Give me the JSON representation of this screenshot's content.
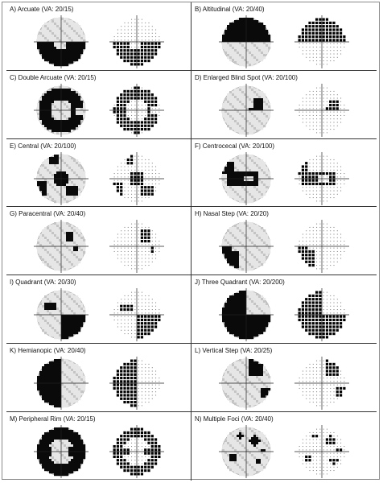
{
  "figure": {
    "panels": [
      {
        "label": "A) Arcuate (VA: 20/15)",
        "pattern": "arcuate"
      },
      {
        "label": "B) Altitudinal (VA: 20/40)",
        "pattern": "altitudinal"
      },
      {
        "label": "C) Double Arcuate (VA: 20/15)",
        "pattern": "double-arcuate"
      },
      {
        "label": "D) Enlarged Blind Spot (VA: 20/100)",
        "pattern": "blind-spot"
      },
      {
        "label": "E) Central (VA: 20/100)",
        "pattern": "central"
      },
      {
        "label": "F) Centrocecal (VA: 20/100)",
        "pattern": "centrocecal"
      },
      {
        "label": "G) Paracentral (VA: 20/40)",
        "pattern": "paracentral"
      },
      {
        "label": "H) Nasal Step (VA: 20/20)",
        "pattern": "nasal-step"
      },
      {
        "label": "I) Quadrant (VA: 20/30)",
        "pattern": "quadrant"
      },
      {
        "label": "J) Three Quadrant (VA: 20/200)",
        "pattern": "three-quadrant"
      },
      {
        "label": "K) Hemianopic (VA: 20/40)",
        "pattern": "hemianopic"
      },
      {
        "label": "L) Vertical Step (VA: 20/25)",
        "pattern": "vertical-step"
      },
      {
        "label": "M) Peripheral Rim (VA: 20/15)",
        "pattern": "peripheral-rim"
      },
      {
        "label": "N) Multiple Foci (VA: 20/40)",
        "pattern": "multiple-foci"
      }
    ]
  }
}
